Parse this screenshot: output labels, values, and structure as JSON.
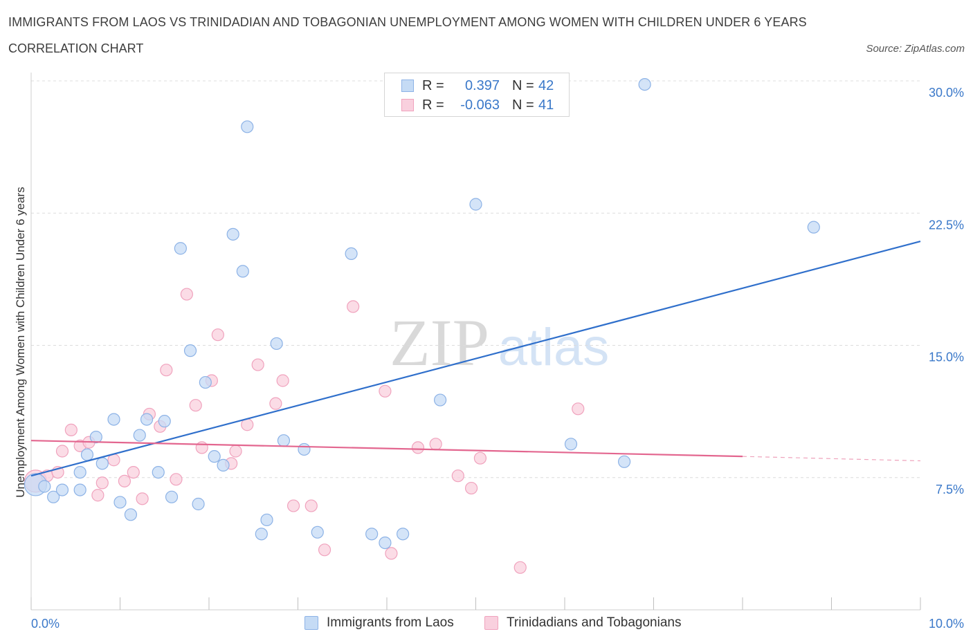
{
  "header": {
    "title": "IMMIGRANTS FROM LAOS VS TRINIDADIAN AND TOBAGONIAN UNEMPLOYMENT AMONG WOMEN WITH CHILDREN UNDER 6 YEARS",
    "subtitle": "CORRELATION CHART",
    "source": "Source: ZipAtlas.com"
  },
  "legend_top": {
    "rows": [
      {
        "r_label": "R =",
        "r_value": "0.397",
        "n_label": "N =",
        "n_value": "42"
      },
      {
        "r_label": "R =",
        "r_value": "-0.063",
        "n_label": "N =",
        "n_value": "41"
      }
    ]
  },
  "watermark": {
    "zip": "ZIP",
    "atlas": "atlas"
  },
  "colors": {
    "series1_fill": "#c5dbf5",
    "series1_stroke": "#8cb2e6",
    "series1_line": "#2f6fcb",
    "series2_fill": "#f9d0de",
    "series2_stroke": "#f0a2bd",
    "series2_line": "#e3668f",
    "tick_label": "#3a78c9",
    "grid": "#dcdcdc"
  },
  "chart_data": {
    "type": "scatter",
    "title": "IMMIGRANTS FROM LAOS VS TRINIDADIAN AND TOBAGONIAN UNEMPLOYMENT AMONG WOMEN WITH CHILDREN UNDER 6 YEARS",
    "xlabel": "",
    "ylabel": "Unemployment Among Women with Children Under 6 years",
    "xlim": [
      0,
      10
    ],
    "ylim": [
      0,
      30
    ],
    "x_tick_labels": [
      "0.0%",
      "10.0%"
    ],
    "y_ticks": [
      7.5,
      15,
      22.5,
      30
    ],
    "y_tick_labels": [
      "7.5%",
      "15.0%",
      "22.5%",
      "30.0%"
    ],
    "grid": true,
    "legend_position": "bottom",
    "series": [
      {
        "name": "Immigrants from Laos",
        "trend": {
          "x": [
            0,
            10
          ],
          "y": [
            7.6,
            20.9
          ]
        },
        "points": [
          {
            "x": 0.05,
            "y": 7.1,
            "big": true
          },
          {
            "x": 0.15,
            "y": 7.0
          },
          {
            "x": 0.25,
            "y": 6.4
          },
          {
            "x": 0.35,
            "y": 6.8
          },
          {
            "x": 0.55,
            "y": 7.8
          },
          {
            "x": 0.55,
            "y": 6.8
          },
          {
            "x": 0.63,
            "y": 8.8
          },
          {
            "x": 0.73,
            "y": 9.8
          },
          {
            "x": 0.8,
            "y": 8.3
          },
          {
            "x": 0.93,
            "y": 10.8
          },
          {
            "x": 1.0,
            "y": 6.1
          },
          {
            "x": 1.12,
            "y": 5.4
          },
          {
            "x": 1.22,
            "y": 9.9
          },
          {
            "x": 1.3,
            "y": 10.8
          },
          {
            "x": 1.43,
            "y": 7.8
          },
          {
            "x": 1.5,
            "y": 10.7
          },
          {
            "x": 1.58,
            "y": 6.4
          },
          {
            "x": 1.68,
            "y": 20.5
          },
          {
            "x": 1.79,
            "y": 14.7
          },
          {
            "x": 1.88,
            "y": 6.0
          },
          {
            "x": 1.96,
            "y": 12.9
          },
          {
            "x": 2.06,
            "y": 8.7
          },
          {
            "x": 2.16,
            "y": 8.2
          },
          {
            "x": 2.27,
            "y": 21.3
          },
          {
            "x": 2.38,
            "y": 19.2
          },
          {
            "x": 2.43,
            "y": 27.4
          },
          {
            "x": 2.59,
            "y": 4.3
          },
          {
            "x": 2.65,
            "y": 5.1
          },
          {
            "x": 2.76,
            "y": 15.1
          },
          {
            "x": 2.84,
            "y": 9.6
          },
          {
            "x": 3.07,
            "y": 9.1
          },
          {
            "x": 3.22,
            "y": 4.4
          },
          {
            "x": 3.6,
            "y": 20.2
          },
          {
            "x": 3.83,
            "y": 4.3
          },
          {
            "x": 3.98,
            "y": 3.8
          },
          {
            "x": 4.18,
            "y": 4.3
          },
          {
            "x": 4.6,
            "y": 11.9
          },
          {
            "x": 5.0,
            "y": 23.0
          },
          {
            "x": 6.07,
            "y": 9.4
          },
          {
            "x": 6.67,
            "y": 8.4
          },
          {
            "x": 6.9,
            "y": 29.8
          },
          {
            "x": 8.8,
            "y": 21.7
          }
        ]
      },
      {
        "name": "Trinidadians and Tobagonians",
        "trend": {
          "x": [
            0,
            8.0
          ],
          "y": [
            9.6,
            8.7
          ]
        },
        "trend_dashed": {
          "x": [
            8.0,
            10
          ],
          "y": [
            8.7,
            8.45
          ]
        },
        "points": [
          {
            "x": 0.05,
            "y": 7.3,
            "big": true
          },
          {
            "x": 0.18,
            "y": 7.6
          },
          {
            "x": 0.3,
            "y": 7.8
          },
          {
            "x": 0.35,
            "y": 9.0
          },
          {
            "x": 0.45,
            "y": 10.2
          },
          {
            "x": 0.55,
            "y": 9.3
          },
          {
            "x": 0.65,
            "y": 9.5
          },
          {
            "x": 0.75,
            "y": 6.5
          },
          {
            "x": 0.8,
            "y": 7.2
          },
          {
            "x": 0.93,
            "y": 8.5
          },
          {
            "x": 1.05,
            "y": 7.3
          },
          {
            "x": 1.15,
            "y": 7.8
          },
          {
            "x": 1.25,
            "y": 6.3
          },
          {
            "x": 1.33,
            "y": 11.1
          },
          {
            "x": 1.45,
            "y": 10.4
          },
          {
            "x": 1.52,
            "y": 13.6
          },
          {
            "x": 1.63,
            "y": 7.4
          },
          {
            "x": 1.75,
            "y": 17.9
          },
          {
            "x": 1.85,
            "y": 11.6
          },
          {
            "x": 1.92,
            "y": 9.2
          },
          {
            "x": 2.03,
            "y": 13.0
          },
          {
            "x": 2.1,
            "y": 15.6
          },
          {
            "x": 2.25,
            "y": 8.3
          },
          {
            "x": 2.3,
            "y": 9.0
          },
          {
            "x": 2.43,
            "y": 10.5
          },
          {
            "x": 2.55,
            "y": 13.9
          },
          {
            "x": 2.75,
            "y": 11.7
          },
          {
            "x": 2.83,
            "y": 13.0
          },
          {
            "x": 2.95,
            "y": 5.9
          },
          {
            "x": 3.15,
            "y": 5.9
          },
          {
            "x": 3.3,
            "y": 3.4
          },
          {
            "x": 3.62,
            "y": 17.2
          },
          {
            "x": 3.98,
            "y": 12.4
          },
          {
            "x": 4.05,
            "y": 3.2
          },
          {
            "x": 4.35,
            "y": 9.2
          },
          {
            "x": 4.55,
            "y": 9.4
          },
          {
            "x": 4.8,
            "y": 7.6
          },
          {
            "x": 4.95,
            "y": 6.9
          },
          {
            "x": 5.05,
            "y": 8.6
          },
          {
            "x": 5.5,
            "y": 2.4
          },
          {
            "x": 6.15,
            "y": 11.4
          }
        ]
      }
    ]
  }
}
